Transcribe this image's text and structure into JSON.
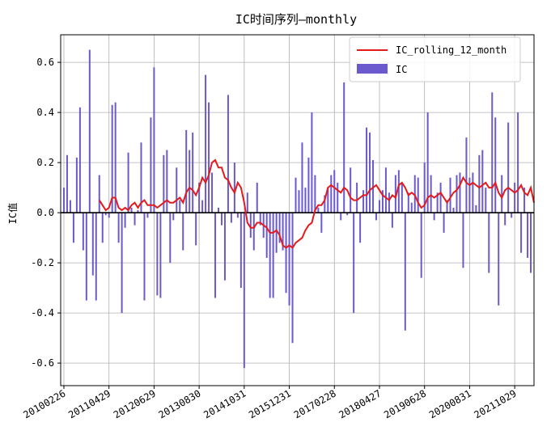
{
  "chart_data": {
    "type": "bar+line",
    "title": "IC时间序列—monthly",
    "xlabel": "",
    "ylabel": "IC值",
    "ylim": [
      -0.69,
      0.71
    ],
    "yticks": [
      -0.6,
      -0.4,
      -0.2,
      0.0,
      0.2,
      0.4,
      0.6
    ],
    "ytick_labels": [
      "-0.6",
      "-0.4",
      "-0.2",
      "0.0",
      "0.2",
      "0.4",
      "0.6"
    ],
    "xtick_labels": [
      "20100226",
      "20110429",
      "20120629",
      "20130830",
      "20141031",
      "20151231",
      "20170228",
      "20180427",
      "20190628",
      "20200831",
      "20211029"
    ],
    "xtick_index": [
      0,
      14,
      28,
      42,
      56,
      70,
      84,
      98,
      112,
      126,
      140
    ],
    "grid": true,
    "legend_position": "top-right",
    "colors": {
      "bar": "#6a5acd",
      "line": "#e41a1c",
      "zero_line": "#000000",
      "grid": "#b0b0b0"
    },
    "series": [
      {
        "name": "IC",
        "kind": "bar",
        "values": [
          0.1,
          0.23,
          0.05,
          -0.12,
          0.22,
          0.42,
          -0.15,
          -0.35,
          0.65,
          -0.25,
          -0.35,
          0.15,
          -0.12,
          -0.01,
          -0.02,
          0.43,
          0.44,
          -0.12,
          -0.4,
          -0.06,
          0.24,
          0.02,
          -0.05,
          0.01,
          0.28,
          -0.35,
          -0.02,
          0.38,
          0.58,
          -0.33,
          -0.34,
          0.23,
          0.25,
          -0.2,
          -0.03,
          0.18,
          0.05,
          -0.15,
          0.33,
          0.25,
          0.32,
          -0.13,
          0.12,
          0.05,
          0.55,
          0.44,
          0.16,
          -0.34,
          0.02,
          -0.05,
          -0.27,
          0.47,
          -0.04,
          0.2,
          -0.02,
          -0.3,
          -0.62,
          0.08,
          -0.1,
          -0.15,
          0.12,
          -0.05,
          -0.1,
          -0.18,
          -0.34,
          -0.34,
          -0.16,
          -0.12,
          -0.15,
          -0.32,
          -0.37,
          -0.52,
          0.14,
          0.09,
          0.28,
          0.1,
          0.22,
          0.4,
          0.15,
          0.02,
          -0.08,
          0.07,
          0.1,
          0.15,
          0.17,
          0.12,
          -0.03,
          0.52,
          -0.01,
          0.18,
          -0.4,
          0.12,
          -0.12,
          0.09,
          0.34,
          0.32,
          0.21,
          -0.03,
          0.05,
          0.09,
          0.18,
          0.08,
          -0.06,
          0.15,
          0.17,
          0.12,
          -0.47,
          0.08,
          0.04,
          0.15,
          0.14,
          -0.26,
          0.2,
          0.4,
          0.15,
          -0.03,
          0.08,
          0.12,
          -0.08,
          0.05,
          0.14,
          0.02,
          0.15,
          0.16,
          -0.22,
          0.3,
          0.14,
          0.16,
          0.03,
          0.23,
          0.25,
          0.1,
          -0.24,
          0.48,
          0.38,
          -0.37,
          0.15,
          -0.05,
          0.36,
          -0.02,
          0.12,
          0.4,
          -0.16,
          0.1,
          -0.18,
          -0.24
        ]
      },
      {
        "name": "IC_rolling_12_month",
        "kind": "line",
        "values": [
          null,
          null,
          null,
          null,
          null,
          null,
          null,
          null,
          null,
          null,
          null,
          0.05,
          0.03,
          0.01,
          0.02,
          0.06,
          0.06,
          0.02,
          0.01,
          0.02,
          0.01,
          0.03,
          0.04,
          0.02,
          0.04,
          0.05,
          0.03,
          0.03,
          0.03,
          0.02,
          0.03,
          0.04,
          0.05,
          0.04,
          0.04,
          0.05,
          0.06,
          0.04,
          0.08,
          0.1,
          0.09,
          0.07,
          0.1,
          0.14,
          0.12,
          0.15,
          0.2,
          0.21,
          0.18,
          0.18,
          0.14,
          0.13,
          0.1,
          0.08,
          0.12,
          0.1,
          0.04,
          -0.04,
          -0.06,
          -0.06,
          -0.04,
          -0.04,
          -0.05,
          -0.06,
          -0.08,
          -0.08,
          -0.07,
          -0.09,
          -0.13,
          -0.14,
          -0.13,
          -0.14,
          -0.12,
          -0.11,
          -0.1,
          -0.07,
          -0.05,
          -0.04,
          0.01,
          0.03,
          0.03,
          0.05,
          0.1,
          0.11,
          0.1,
          0.09,
          0.08,
          0.1,
          0.09,
          0.06,
          0.05,
          0.05,
          0.06,
          0.07,
          0.07,
          0.09,
          0.1,
          0.11,
          0.09,
          0.07,
          0.06,
          0.05,
          0.07,
          0.06,
          0.11,
          0.12,
          0.1,
          0.07,
          0.08,
          0.07,
          0.04,
          0.02,
          0.03,
          0.06,
          0.07,
          0.06,
          0.07,
          0.08,
          0.06,
          0.04,
          0.06,
          0.08,
          0.09,
          0.11,
          0.14,
          0.12,
          0.11,
          0.12,
          0.11,
          0.1,
          0.11,
          0.12,
          0.1,
          0.1,
          0.12,
          0.08,
          0.06,
          0.09,
          0.1,
          0.09,
          0.08,
          0.09,
          0.11,
          0.08,
          0.07,
          0.1,
          0.04
        ]
      }
    ]
  }
}
